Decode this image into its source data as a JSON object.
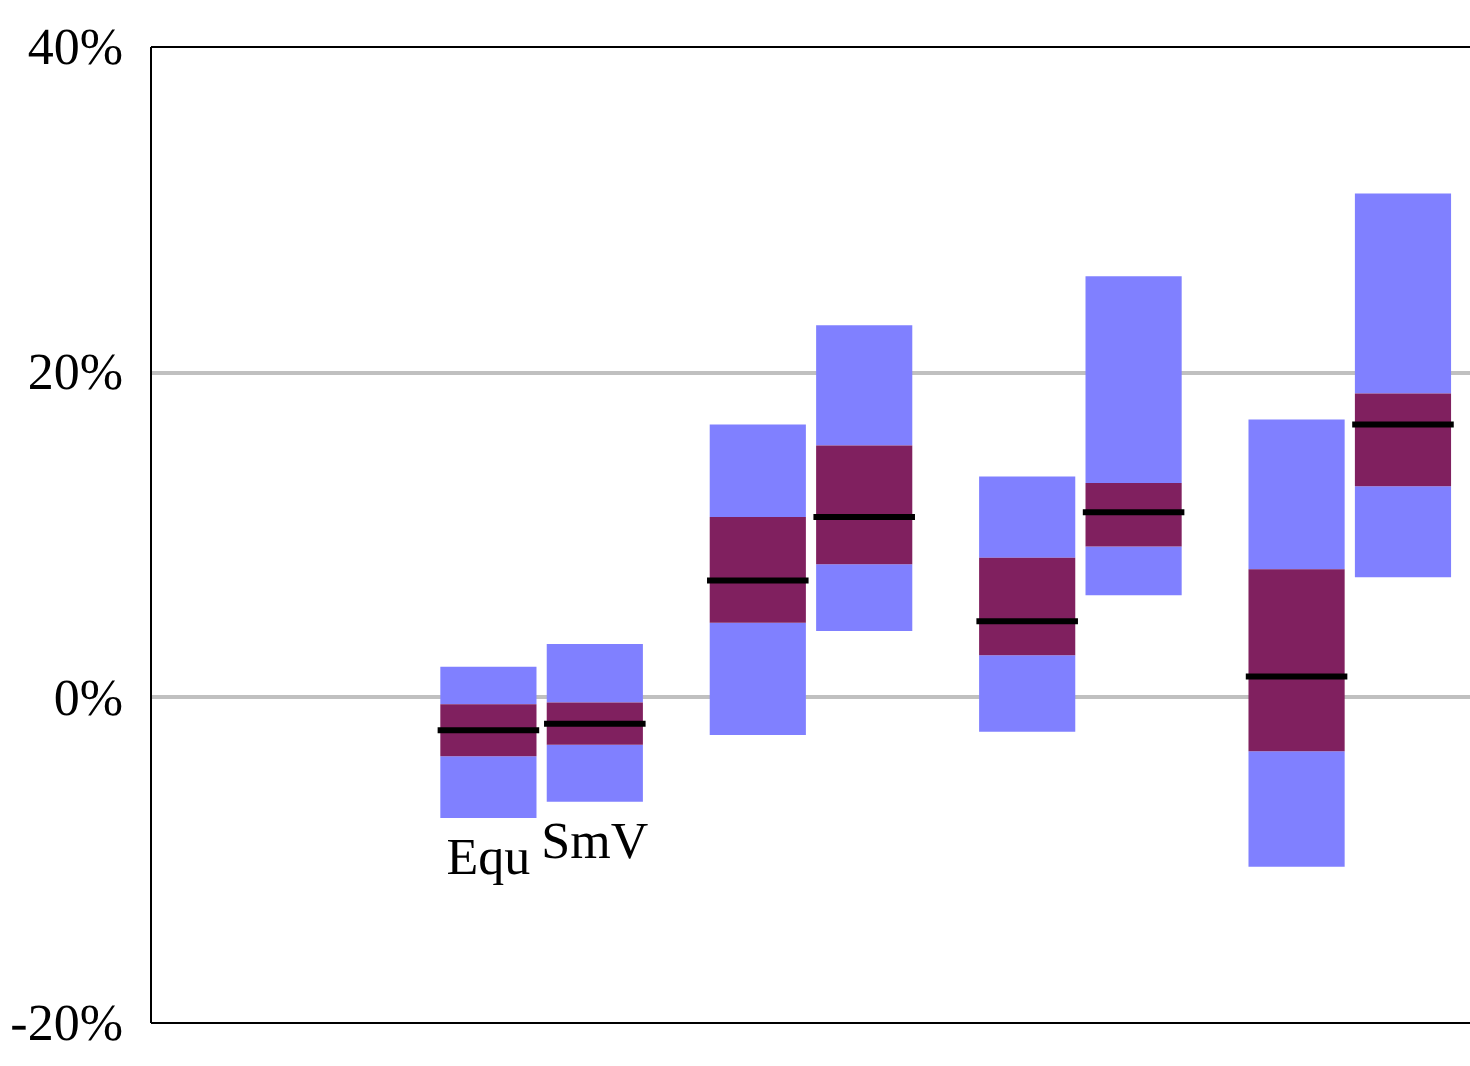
{
  "chart_data": {
    "type": "box",
    "categories": [
      null,
      null,
      null,
      null,
      null
    ],
    "series": [
      {
        "name": "Equ",
        "color": "#80205f",
        "boxes": [
          null,
          {
            "low": -7.4,
            "q1": -3.6,
            "median": -2.0,
            "q3": -0.4,
            "high": 1.9
          },
          {
            "low": -2.3,
            "q1": 4.6,
            "median": 7.2,
            "q3": 11.1,
            "high": 16.8
          },
          {
            "low": -2.1,
            "q1": 2.6,
            "median": 4.7,
            "q3": 8.6,
            "high": 13.6
          },
          {
            "low": -10.4,
            "q1": -3.3,
            "median": 1.3,
            "q3": 7.9,
            "high": 17.1
          }
        ]
      },
      {
        "name": "SmV",
        "color": "#80205f",
        "boxes": [
          null,
          {
            "low": -6.4,
            "q1": -2.9,
            "median": -1.6,
            "q3": -0.3,
            "high": 3.3
          },
          {
            "low": 4.1,
            "q1": 8.2,
            "median": 11.1,
            "q3": 15.5,
            "high": 22.9
          },
          {
            "low": 6.3,
            "q1": 9.3,
            "median": 11.4,
            "q3": 13.2,
            "high": 25.9
          },
          {
            "low": 7.4,
            "q1": 13.0,
            "median": 16.8,
            "q3": 18.7,
            "high": 31.0
          }
        ]
      }
    ],
    "ylim": [
      -20,
      40
    ],
    "yticks": [
      {
        "value": -20,
        "label": "-20%"
      },
      {
        "value": 0,
        "label": "0%"
      },
      {
        "value": 20,
        "label": "20%"
      },
      {
        "value": 40,
        "label": "40%"
      }
    ],
    "grid": "y",
    "tick_labels": "y"
  }
}
